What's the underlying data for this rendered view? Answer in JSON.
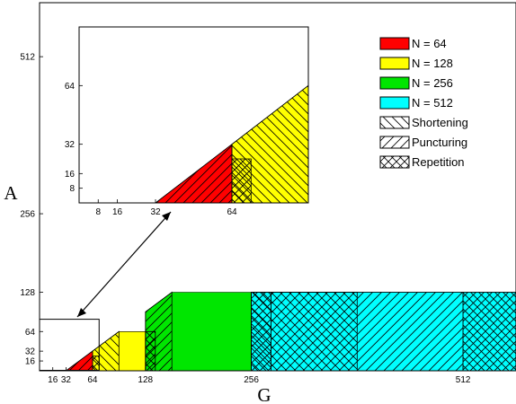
{
  "chart_data": {
    "type": "area",
    "title": "",
    "xlabel": "G",
    "ylabel": "A",
    "main": {
      "xlim": [
        0,
        576
      ],
      "ylim": [
        0,
        600
      ],
      "xticks": [
        16,
        32,
        64,
        128,
        256,
        512
      ],
      "yticks": [
        16,
        32,
        64,
        128,
        256,
        512
      ],
      "inset_box": {
        "x": [
          0,
          64
        ],
        "y": [
          0,
          96
        ]
      }
    },
    "inset": {
      "xlim": [
        0,
        96
      ],
      "ylim": [
        0,
        96
      ],
      "xticks": [
        8,
        16,
        32,
        64
      ],
      "yticks": [
        8,
        16,
        32,
        64
      ]
    },
    "legend_placement": "top-right",
    "legend": {
      "colors": [
        {
          "name": "N = 64",
          "color": "#ff0000"
        },
        {
          "name": "N = 128",
          "color": "#ffff00"
        },
        {
          "name": "N = 256",
          "color": "#00e600"
        },
        {
          "name": "N = 512",
          "color": "#00ffff"
        }
      ],
      "patterns": [
        {
          "name": "Shortening",
          "pattern": "backslash"
        },
        {
          "name": "Puncturing",
          "pattern": "slash"
        },
        {
          "name": "Repetition",
          "pattern": "cross"
        }
      ]
    },
    "regions": [
      {
        "N": 64,
        "G": [
          32,
          64
        ],
        "A": [
          0,
          32
        ],
        "feasible_if": "A <= G - 32"
      },
      {
        "N": 64,
        "G": [
          64,
          96
        ],
        "A": [
          0,
          64
        ],
        "feasible_if": "A <= G - 32"
      },
      {
        "N": 128,
        "G": [
          64,
          128
        ],
        "A": [
          0,
          64
        ],
        "feasible_if": "A <= G - 32"
      },
      {
        "N": 128,
        "G": [
          128,
          160
        ],
        "A": [
          0,
          128
        ],
        "feasible_if": "A <= G - 32"
      },
      {
        "N": 256,
        "G": [
          128,
          256
        ],
        "A": [
          0,
          128
        ],
        "feasible_if": "A <= G - 32"
      },
      {
        "N": 512,
        "G": [
          256,
          576
        ],
        "A": [
          0,
          128
        ]
      }
    ],
    "pattern_regions": [
      {
        "pattern": "slash",
        "G": [
          32,
          64
        ],
        "A": [
          0,
          32
        ]
      },
      {
        "pattern": "cross",
        "G": [
          64,
          72
        ],
        "A": [
          0,
          24
        ]
      },
      {
        "pattern": "backslash",
        "G": [
          64,
          96
        ],
        "A": [
          0,
          64
        ]
      },
      {
        "pattern": "cross",
        "G": [
          128,
          140
        ],
        "A": [
          0,
          64
        ]
      },
      {
        "pattern": "slash",
        "G": [
          128,
          160
        ],
        "A": [
          0,
          128
        ]
      },
      {
        "pattern": "cross",
        "G": [
          256,
          280
        ],
        "A": [
          0,
          128
        ]
      },
      {
        "pattern": "backslash",
        "G": [
          256,
          384
        ],
        "A": [
          64,
          128
        ]
      },
      {
        "pattern": "slash",
        "G": [
          280,
          512
        ],
        "A": [
          0,
          128
        ]
      },
      {
        "pattern": "cross",
        "G": [
          512,
          576
        ],
        "A": [
          0,
          128
        ]
      }
    ]
  }
}
